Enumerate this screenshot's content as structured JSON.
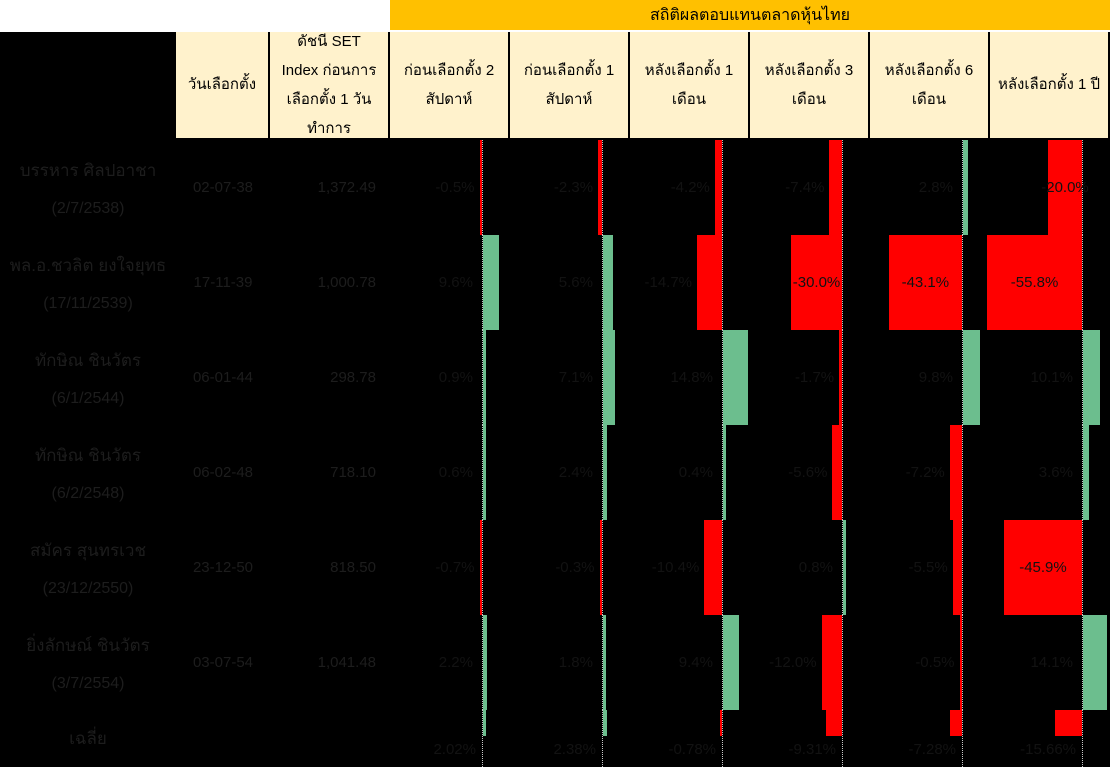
{
  "title": "สถิติผลตอบแทนตลาดหุ้นไทย",
  "colors": {
    "banner": "#FFC000",
    "header_bg": "#FFF2CC",
    "positive_bar": "#6CBE8E",
    "negative_bar": "#FF0000",
    "background": "#000000",
    "body_text": "#1D1D1D"
  },
  "columns": {
    "election_date": "วันเลือกตั้ง",
    "set_index": "ดัชนี SET Index ก่อนการเลือกตั้ง 1 วันทำการ",
    "pre_2w": "ก่อนเลือกตั้ง 2 สัปดาห์",
    "pre_1w": "ก่อนเลือกตั้ง 1 สัปดาห์",
    "post_1m": "หลังเลือกตั้ง 1 เดือน",
    "post_3m": "หลังเลือกตั้ง 3 เดือน",
    "post_6m": "หลังเลือกตั้ง 6 เดือน",
    "post_1y": "หลังเลือกตั้ง 1 ปี"
  },
  "chart_data": {
    "type": "table",
    "unit": "percent",
    "title": "สถิติผลตอบแทนตลาดหุ้นไทย",
    "value_columns": [
      "ก่อนเลือกตั้ง 2 สัปดาห์",
      "ก่อนเลือกตั้ง 1 สัปดาห์",
      "หลังเลือกตั้ง 1 เดือน",
      "หลังเลือกตั้ง 3 เดือน",
      "หลังเลือกตั้ง 6 เดือน",
      "หลังเลือกตั้ง 1 ปี"
    ],
    "rows": [
      {
        "name": "บรรหาร ศิลปอาชา",
        "date_note": "(2/7/2538)",
        "election_date": "02-07-38",
        "set_index": "1,372.49",
        "values": [
          -0.5,
          -2.3,
          -4.2,
          -7.4,
          2.8,
          -20.0
        ],
        "labels": [
          "-0.5%",
          "-2.3%",
          "-4.2%",
          "-7.4%",
          "2.8%",
          "-20.0%"
        ]
      },
      {
        "name": "พล.อ.ชวลิต ยงใจยุทธ",
        "date_note": "(17/11/2539)",
        "election_date": "17-11-39",
        "set_index": "1,000.78",
        "values": [
          9.6,
          5.6,
          -14.7,
          -30.0,
          -43.1,
          -55.8
        ],
        "labels": [
          "9.6%",
          "5.6%",
          "-14.7%",
          "-30.0%",
          "-43.1%",
          "-55.8%"
        ]
      },
      {
        "name": "ทักษิณ ชินวัตร",
        "date_note": "(6/1/2544)",
        "election_date": "06-01-44",
        "set_index": "298.78",
        "values": [
          0.9,
          7.1,
          14.8,
          -1.7,
          9.8,
          10.1
        ],
        "labels": [
          "0.9%",
          "7.1%",
          "14.8%",
          "-1.7%",
          "9.8%",
          "10.1%"
        ]
      },
      {
        "name": "ทักษิณ ชินวัตร",
        "date_note": "(6/2/2548)",
        "election_date": "06-02-48",
        "set_index": "718.10",
        "values": [
          0.6,
          2.4,
          0.4,
          -5.6,
          -7.2,
          3.6
        ],
        "labels": [
          "0.6%",
          "2.4%",
          "0.4%",
          "-5.6%",
          "-7.2%",
          "3.6%"
        ]
      },
      {
        "name": "สมัคร สุนทรเวช",
        "date_note": "(23/12/2550)",
        "election_date": "23-12-50",
        "set_index": "818.50",
        "values": [
          -0.7,
          -0.3,
          -10.4,
          0.8,
          -5.5,
          -45.9
        ],
        "labels": [
          "-0.7%",
          "-0.3%",
          "-10.4%",
          "0.8%",
          "-5.5%",
          "-45.9%"
        ]
      },
      {
        "name": "ยิ่งลักษณ์ ชินวัตร",
        "date_note": "(3/7/2554)",
        "election_date": "03-07-54",
        "set_index": "1,041.48",
        "values": [
          2.2,
          1.8,
          9.4,
          -12.0,
          -0.5,
          14.1
        ],
        "labels": [
          "2.2%",
          "1.8%",
          "9.4%",
          "-12.0%",
          "-0.5%",
          "14.1%"
        ]
      }
    ],
    "average": {
      "name": "เฉลี่ย",
      "values": [
        2.02,
        2.38,
        -0.78,
        -9.31,
        -7.28,
        -15.66
      ],
      "labels": [
        "2.02%",
        "2.38%",
        "-0.78%",
        "-9.31%",
        "-7.28%",
        "-15.66%"
      ]
    }
  }
}
